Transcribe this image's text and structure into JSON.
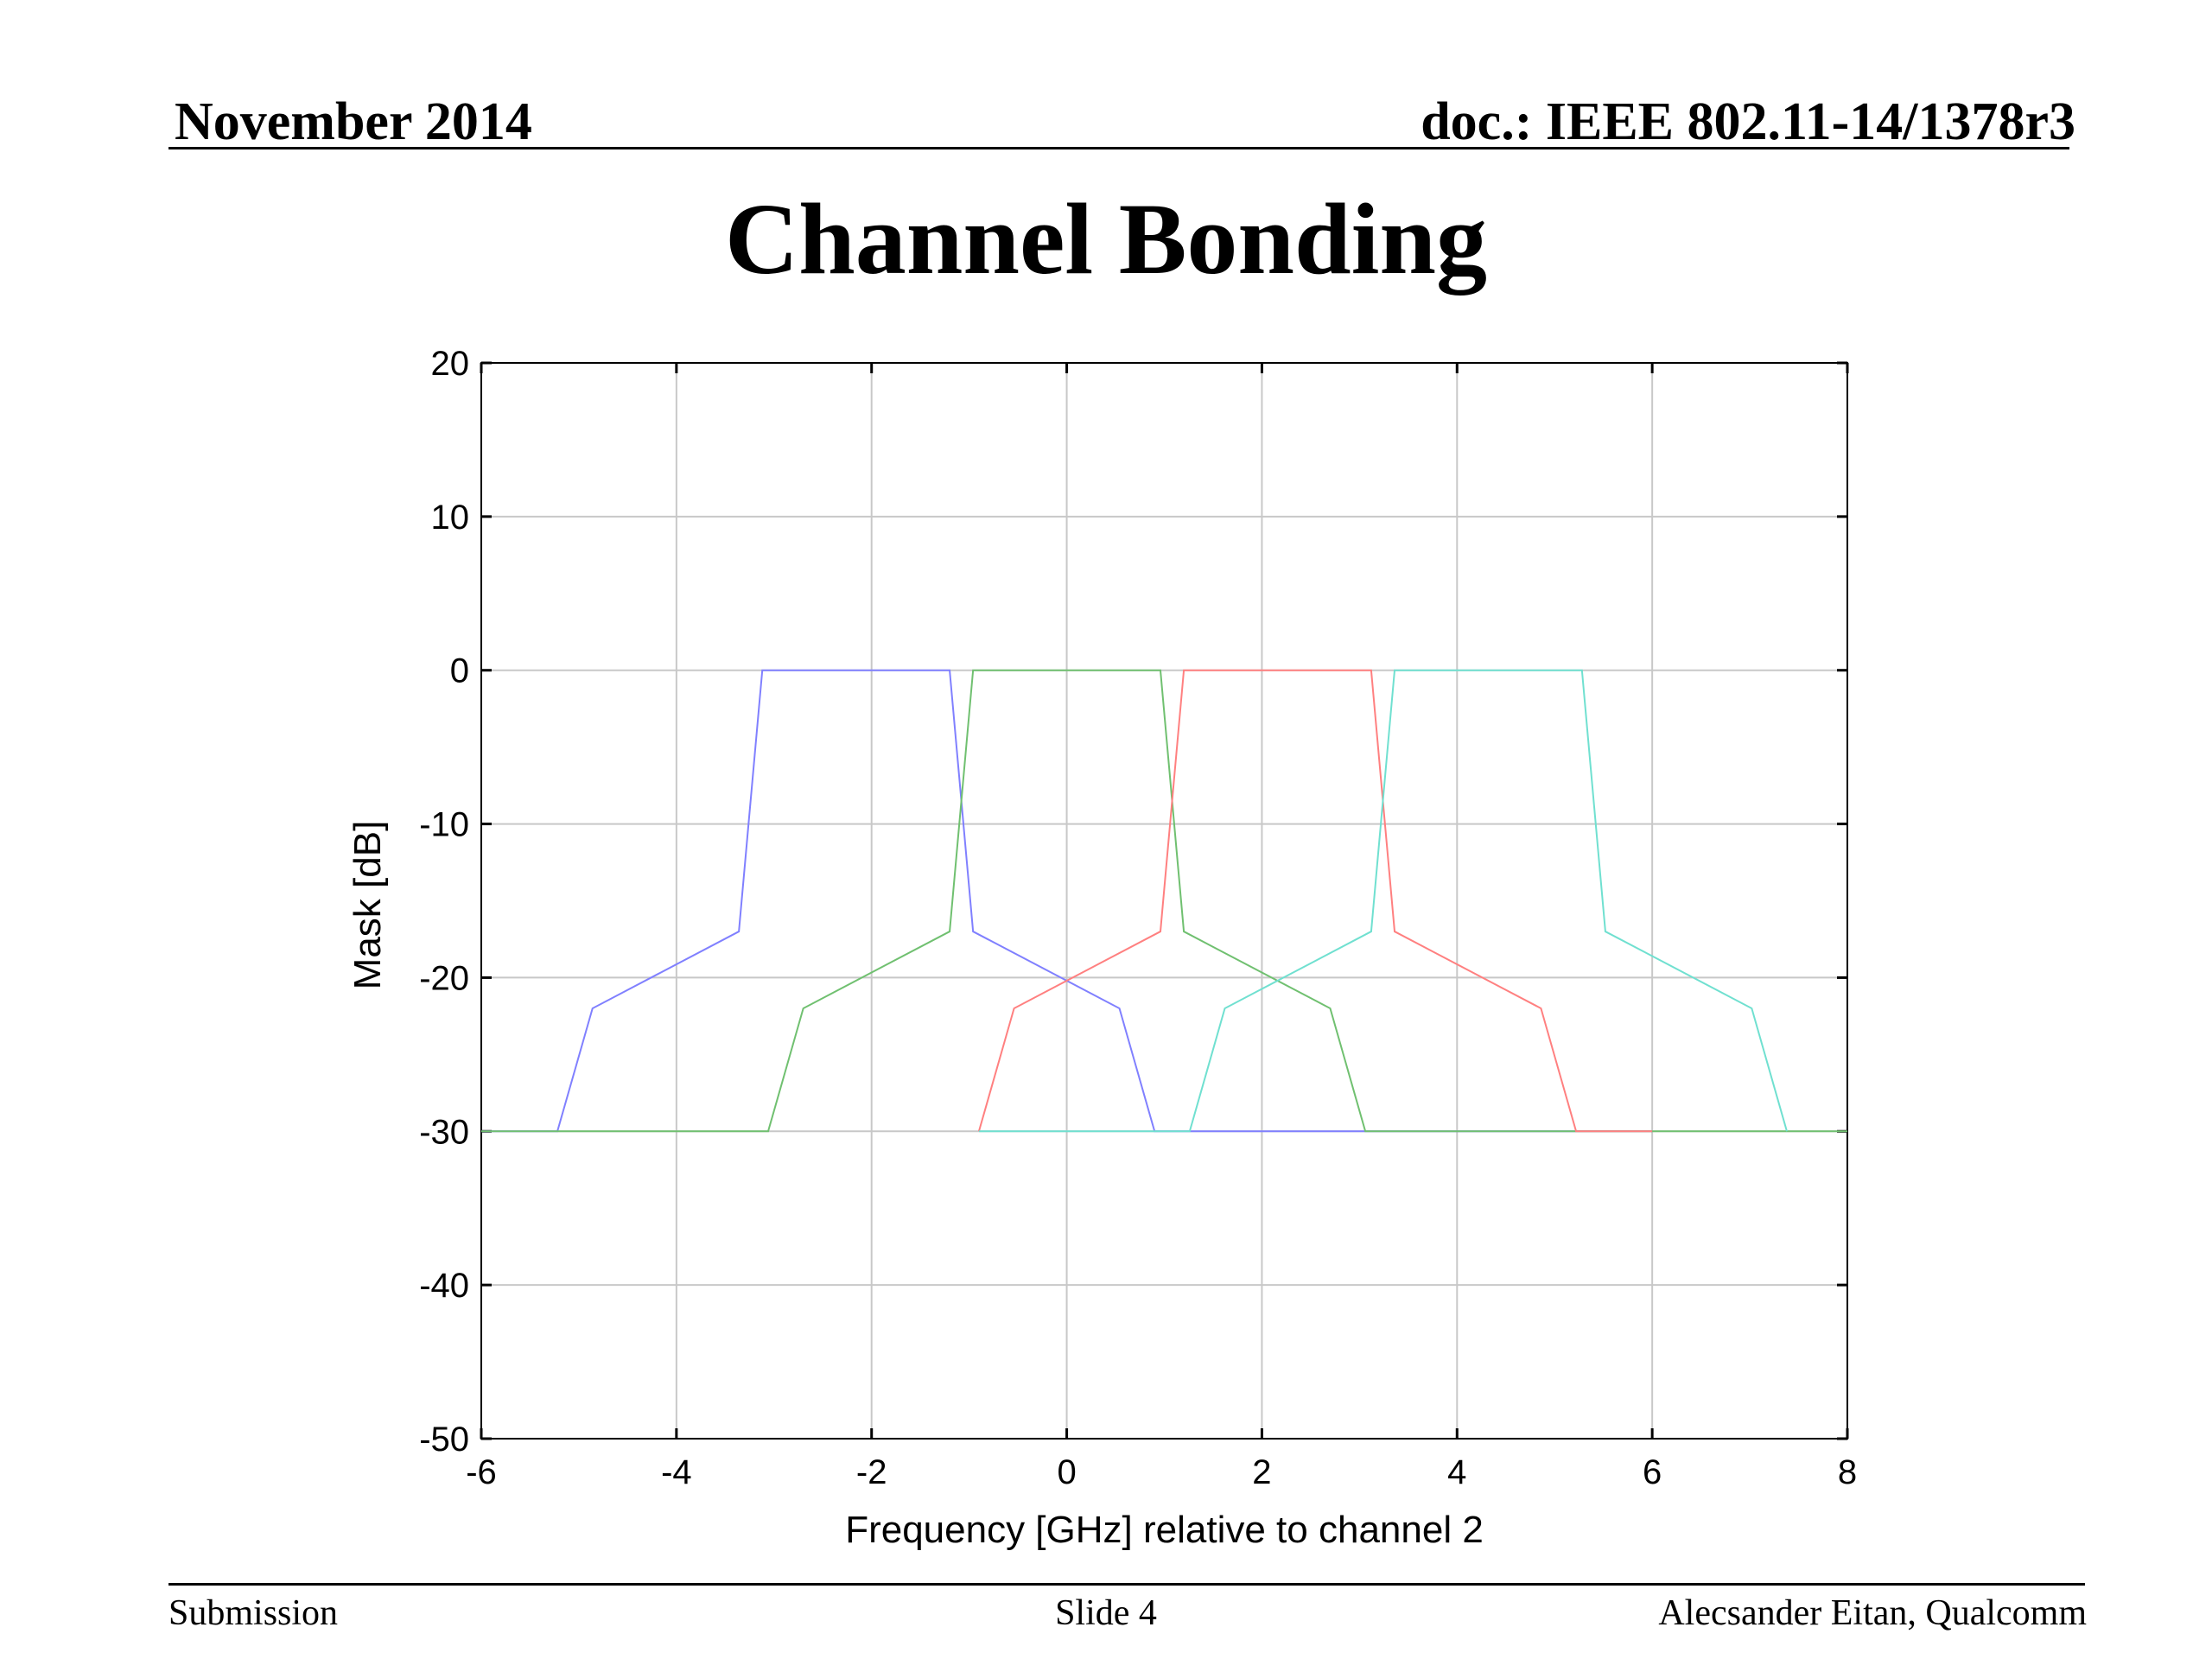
{
  "header": {
    "date": "November 2014",
    "doc": "doc.: IEEE 802.11-14/1378r3"
  },
  "title": "Channel Bonding",
  "chart_data": {
    "type": "line",
    "xlabel": "Frequency [GHz] relative to channel 2",
    "ylabel": "Mask [dB]",
    "xlim": [
      -6,
      8
    ],
    "ylim": [
      -50,
      20
    ],
    "xticks": [
      -6,
      -4,
      -2,
      0,
      2,
      4,
      6,
      8
    ],
    "yticks": [
      20,
      10,
      0,
      -10,
      -20,
      -30,
      -40,
      -50
    ],
    "grid": true,
    "series": [
      {
        "color": "#8080ff",
        "x": [
          -6,
          -5.22,
          -4.86,
          -3.36,
          -3.12,
          -1.2,
          -0.96,
          0.54,
          0.9,
          6.0
        ],
        "y": [
          -30,
          -30,
          -22,
          -17,
          0,
          0,
          -17,
          -22,
          -30,
          -30
        ]
      },
      {
        "color": "#70c070",
        "x": [
          -6,
          -3.06,
          -2.7,
          -1.2,
          -0.96,
          0.96,
          1.2,
          2.7,
          3.06,
          8.0
        ],
        "y": [
          -30,
          -30,
          -22,
          -17,
          0,
          0,
          -17,
          -22,
          -30,
          -30
        ]
      },
      {
        "color": "#ff8080",
        "x": [
          -0.9,
          -0.54,
          0.96,
          1.2,
          3.12,
          3.36,
          4.86,
          5.22,
          6.0
        ],
        "y": [
          -30,
          -22,
          -17,
          0,
          0,
          -17,
          -22,
          -30,
          -30
        ]
      },
      {
        "color": "#70e0d0",
        "x": [
          -0.9,
          1.26,
          1.62,
          3.12,
          3.36,
          5.28,
          5.52,
          7.02,
          7.38
        ],
        "y": [
          -30,
          -30,
          -22,
          -17,
          0,
          0,
          -17,
          -22,
          -30
        ]
      }
    ]
  },
  "footer": {
    "left": "Submission",
    "center": "Slide 4",
    "right": "Alecsander Eitan, Qualcomm"
  }
}
